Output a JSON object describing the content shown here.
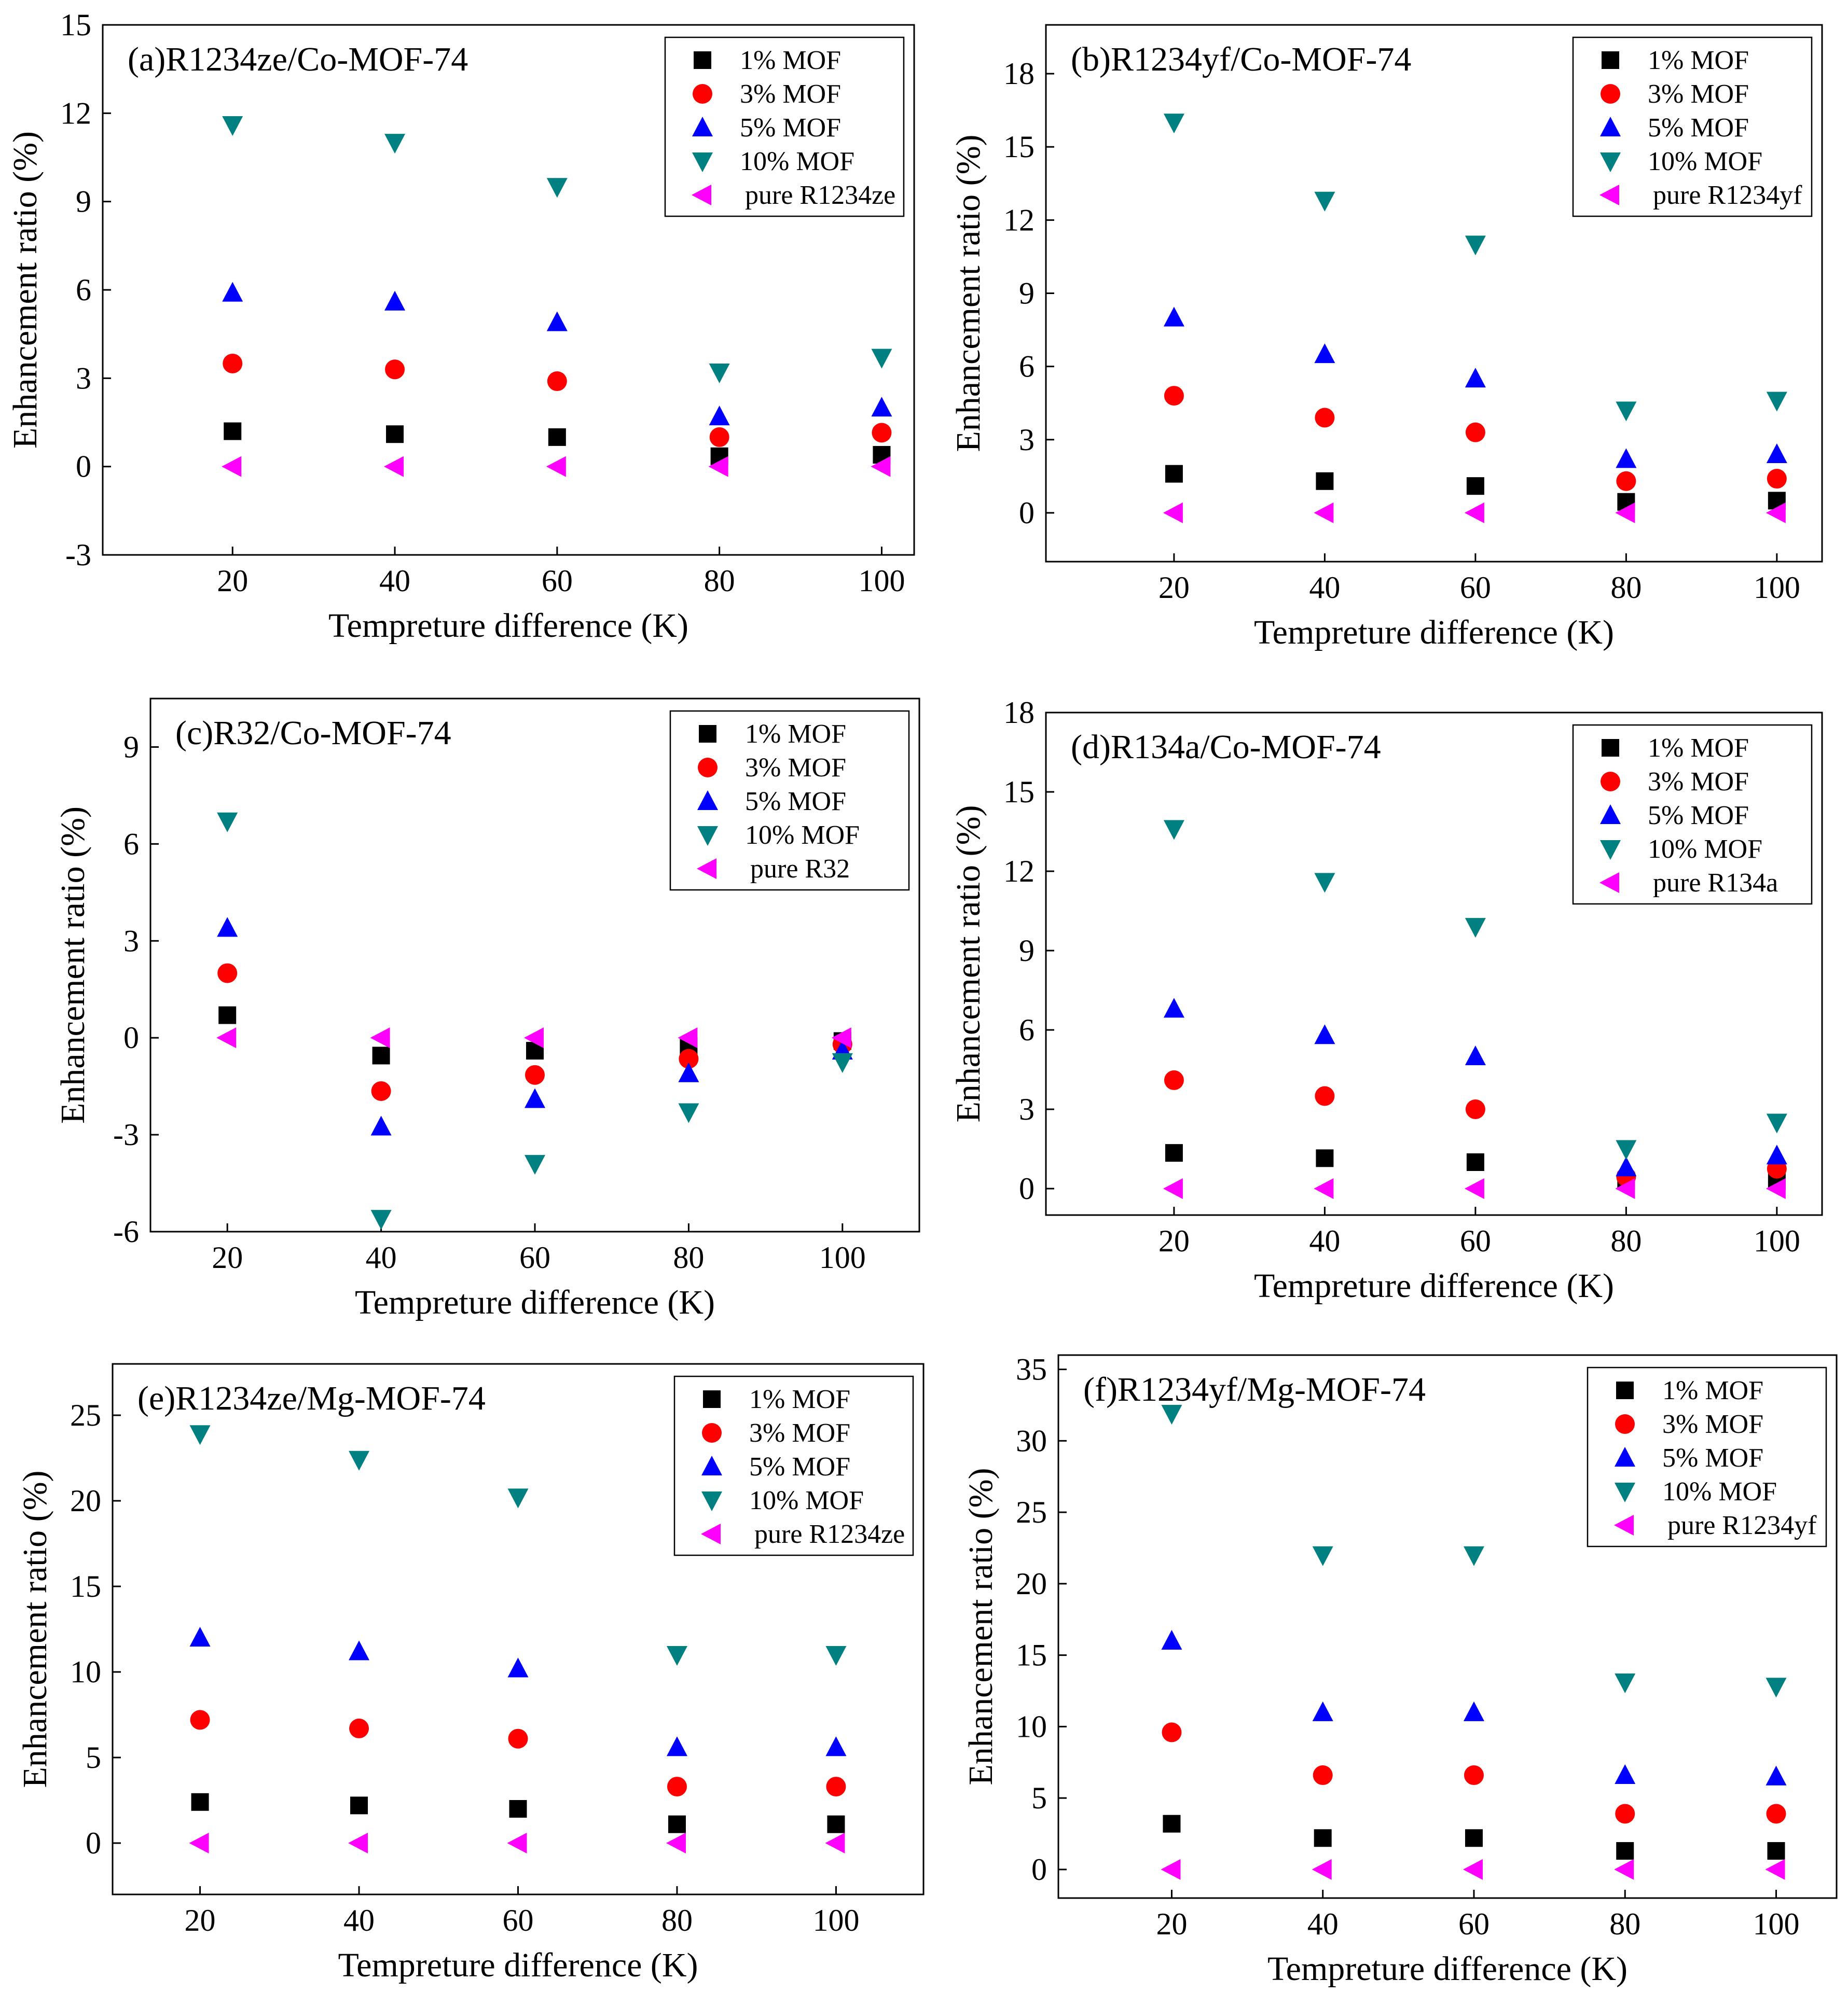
{
  "figure": {
    "legend_labels": [
      "1% MOF",
      "3% MOF",
      "5% MOF",
      "10% MOF"
    ],
    "series_colors": {
      "1% MOF": "#000000",
      "3% MOF": "#ff0000",
      "5% MOF": "#0000ff",
      "10% MOF": "#008080",
      "pure": "#ff00ff"
    },
    "series_markers": {
      "1% MOF": "square",
      "3% MOF": "circle",
      "5% MOF": "triangle-up",
      "10% MOF": "triangle-down",
      "pure": "triangle-left"
    }
  },
  "chart_data": [
    {
      "type": "scatter",
      "title": "(a)R1234ze/Co-MOF-74",
      "xlabel": "Tempreture difference (K)",
      "ylabel": "Enhancement ratio (%)",
      "x": [
        20,
        40,
        60,
        80,
        100
      ],
      "xlim": [
        4,
        104
      ],
      "ylim": [
        -3,
        15
      ],
      "xticks": [
        20,
        40,
        60,
        80,
        100
      ],
      "yticks": [
        -3,
        0,
        3,
        6,
        9,
        12,
        15
      ],
      "legend_position": "top-right",
      "series": [
        {
          "name": "1% MOF",
          "values": [
            1.2,
            1.1,
            1.0,
            0.35,
            0.4
          ]
        },
        {
          "name": "3% MOF",
          "values": [
            3.5,
            3.3,
            2.9,
            1.0,
            1.15
          ]
        },
        {
          "name": "5% MOF",
          "values": [
            5.9,
            5.6,
            4.9,
            1.7,
            2.0
          ]
        },
        {
          "name": "10% MOF",
          "values": [
            11.6,
            11.0,
            9.5,
            3.2,
            3.7
          ]
        },
        {
          "name": "pure R1234ze",
          "values": [
            0,
            0,
            0,
            0,
            0
          ]
        }
      ]
    },
    {
      "type": "scatter",
      "title": "(b)R1234yf/Co-MOF-74",
      "xlabel": "Tempreture difference (K)",
      "ylabel": "Enhancement ratio (%)",
      "x": [
        20,
        40,
        60,
        80,
        100
      ],
      "xlim": [
        3,
        106
      ],
      "ylim": [
        -2,
        20
      ],
      "xticks": [
        20,
        40,
        60,
        80,
        100
      ],
      "yticks": [
        0,
        3,
        6,
        9,
        12,
        15,
        18
      ],
      "legend_position": "top-right",
      "series": [
        {
          "name": "1% MOF",
          "values": [
            1.6,
            1.3,
            1.1,
            0.45,
            0.5
          ]
        },
        {
          "name": "3% MOF",
          "values": [
            4.8,
            3.9,
            3.3,
            1.3,
            1.4
          ]
        },
        {
          "name": "5% MOF",
          "values": [
            8.0,
            6.5,
            5.5,
            2.2,
            2.4
          ]
        },
        {
          "name": "10% MOF",
          "values": [
            16.0,
            12.8,
            11.0,
            4.2,
            4.6
          ]
        },
        {
          "name": "pure R1234yf",
          "values": [
            0,
            0,
            0,
            0,
            0
          ]
        }
      ]
    },
    {
      "type": "scatter",
      "title": "(c)R32/Co-MOF-74",
      "xlabel": "Tempreture difference (K)",
      "ylabel": "Enhancement ratio (%)",
      "x": [
        20,
        40,
        60,
        80,
        100
      ],
      "xlim": [
        10,
        110
      ],
      "ylim": [
        -6,
        10.5
      ],
      "xticks": [
        20,
        40,
        60,
        80,
        100
      ],
      "yticks": [
        -6,
        -3,
        0,
        3,
        6,
        9
      ],
      "legend_position": "top-right",
      "series": [
        {
          "name": "1% MOF",
          "values": [
            0.7,
            -0.55,
            -0.4,
            -0.25,
            -0.1
          ]
        },
        {
          "name": "3% MOF",
          "values": [
            2.0,
            -1.65,
            -1.15,
            -0.65,
            -0.2
          ]
        },
        {
          "name": "5% MOF",
          "values": [
            3.4,
            -2.75,
            -1.9,
            -1.1,
            -0.4
          ]
        },
        {
          "name": "10% MOF",
          "values": [
            6.7,
            -5.6,
            -3.9,
            -2.3,
            -0.75
          ]
        },
        {
          "name": "pure R32",
          "values": [
            0,
            0,
            0,
            0,
            0
          ]
        }
      ]
    },
    {
      "type": "scatter",
      "title": "(d)R134a/Co-MOF-74",
      "xlabel": "Tempreture difference (K)",
      "ylabel": "Enhancement ratio (%)",
      "x": [
        20,
        40,
        60,
        80,
        100
      ],
      "xlim": [
        3,
        106
      ],
      "ylim": [
        -1,
        18
      ],
      "xticks": [
        20,
        40,
        60,
        80,
        100
      ],
      "yticks": [
        0,
        3,
        6,
        9,
        12,
        15,
        18
      ],
      "legend_position": "top-right",
      "series": [
        {
          "name": "1% MOF",
          "values": [
            1.35,
            1.15,
            1.0,
            0.3,
            0.3
          ]
        },
        {
          "name": "3% MOF",
          "values": [
            4.1,
            3.5,
            3.0,
            0.45,
            0.75
          ]
        },
        {
          "name": "5% MOF",
          "values": [
            6.8,
            5.8,
            5.0,
            0.8,
            1.25
          ]
        },
        {
          "name": "10% MOF",
          "values": [
            13.6,
            11.6,
            9.9,
            1.5,
            2.5
          ]
        },
        {
          "name": "pure R134a",
          "values": [
            0,
            0,
            0,
            0,
            0
          ]
        }
      ]
    },
    {
      "type": "scatter",
      "title": "(e)R1234ze/Mg-MOF-74",
      "xlabel": "Tempreture difference (K)",
      "ylabel": "Enhancement ratio (%)",
      "x": [
        20,
        40,
        60,
        80,
        100
      ],
      "xlim": [
        9,
        111
      ],
      "ylim": [
        -3,
        28
      ],
      "xticks": [
        20,
        40,
        60,
        80,
        100
      ],
      "yticks": [
        0,
        5,
        10,
        15,
        20,
        25
      ],
      "legend_position": "top-right",
      "series": [
        {
          "name": "1% MOF",
          "values": [
            2.4,
            2.2,
            2.0,
            1.1,
            1.1
          ]
        },
        {
          "name": "3% MOF",
          "values": [
            7.2,
            6.7,
            6.1,
            3.3,
            3.3
          ]
        },
        {
          "name": "5% MOF",
          "values": [
            12.0,
            11.2,
            10.2,
            5.6,
            5.6
          ]
        },
        {
          "name": "10% MOF",
          "values": [
            23.9,
            22.4,
            20.2,
            11.0,
            11.0
          ]
        },
        {
          "name": "pure R1234ze",
          "values": [
            0,
            0,
            0,
            0,
            0
          ]
        }
      ]
    },
    {
      "type": "scatter",
      "title": "(f)R1234yf/Mg-MOF-74",
      "xlabel": "Tempreture difference (K)",
      "ylabel": "Enhancement ratio (%)",
      "x": [
        20,
        40,
        60,
        80,
        100
      ],
      "xlim": [
        5,
        108
      ],
      "ylim": [
        -2,
        36
      ],
      "xticks": [
        20,
        40,
        60,
        80,
        100
      ],
      "yticks": [
        0,
        5,
        10,
        15,
        20,
        25,
        30,
        35
      ],
      "legend_position": "top-right",
      "series": [
        {
          "name": "1% MOF",
          "values": [
            3.2,
            2.2,
            2.2,
            1.3,
            1.3
          ]
        },
        {
          "name": "3% MOF",
          "values": [
            9.6,
            6.6,
            6.6,
            3.9,
            3.9
          ]
        },
        {
          "name": "5% MOF",
          "values": [
            16.0,
            11.0,
            11.0,
            6.6,
            6.5
          ]
        },
        {
          "name": "10% MOF",
          "values": [
            31.9,
            22.0,
            22.0,
            13.1,
            12.8
          ]
        },
        {
          "name": "pure R1234yf",
          "values": [
            0,
            0,
            0,
            0,
            0
          ]
        }
      ]
    }
  ]
}
